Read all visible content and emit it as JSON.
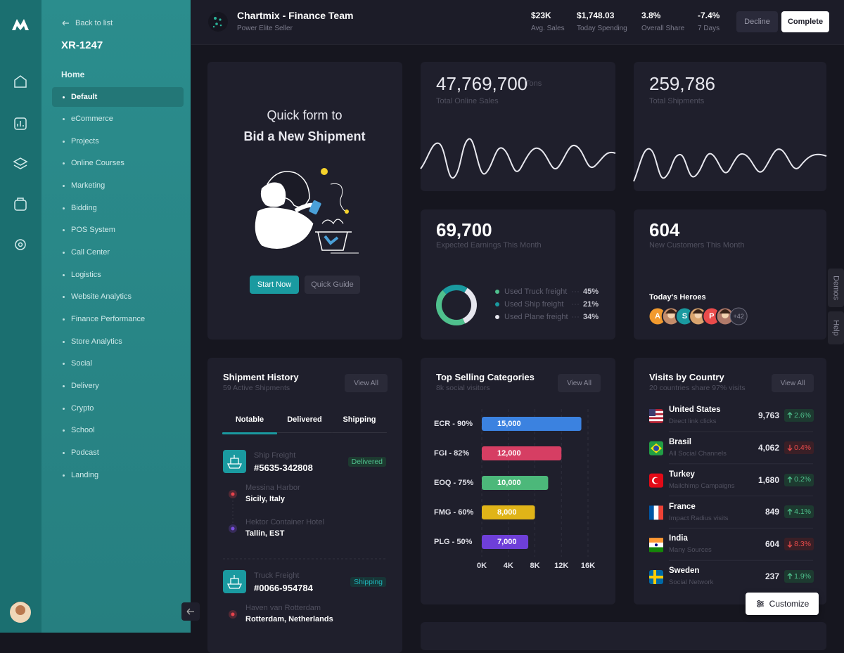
{
  "sidebar": {
    "back": "Back to list",
    "code": "XR-1247",
    "section": "Home",
    "menu": [
      "Default",
      "eCommerce",
      "Projects",
      "Online Courses",
      "Marketing",
      "Bidding",
      "POS System",
      "Call Center",
      "Logistics",
      "Website Analytics",
      "Finance Performance",
      "Store Analytics",
      "Social",
      "Delivery",
      "Crypto",
      "School",
      "Podcast",
      "Landing"
    ],
    "active": 0
  },
  "header": {
    "title": "Chartmix - Finance Team",
    "subtitle": "Power Elite Seller",
    "stats": [
      {
        "value": "$23K",
        "label": "Avg. Sales"
      },
      {
        "value": "$1,748.03",
        "label": "Today Spending"
      },
      {
        "value": "3.8%",
        "label": "Overall Share"
      },
      {
        "value": "-7.4%",
        "label": "7 Days"
      }
    ],
    "decline": "Decline",
    "complete": "Complete"
  },
  "quick_form": {
    "line1": "Quick form to",
    "line2": "Bid a New Shipment",
    "primary": "Start Now",
    "secondary": "Quick Guide"
  },
  "online_sales": {
    "value": "47,769,700",
    "unit": "Tons",
    "label": "Total Online Sales"
  },
  "shipments_total": {
    "value": "259,786",
    "label": "Total Shipments"
  },
  "earnings": {
    "value": "69,700",
    "label": "Expected Earnings This Month"
  },
  "customers": {
    "value": "604",
    "label": "New Customers This Month",
    "heroes_title": "Today's Heroes",
    "heroes": [
      {
        "label": "A",
        "color": "#f29a2e"
      },
      {
        "color": "#c48d6a"
      },
      {
        "label": "S",
        "color": "#1a9aa0"
      },
      {
        "color": "#d9a46e"
      },
      {
        "label": "P",
        "color": "#ea4b4b"
      },
      {
        "color": "#b07a6a"
      }
    ],
    "more": "+42"
  },
  "shipment_history": {
    "title": "Shipment History",
    "subtitle": "59 Active Shipments",
    "action": "View All",
    "tabs": [
      "Notable",
      "Delivered",
      "Shipping"
    ],
    "active_tab": 0,
    "shipments": [
      {
        "type": "Ship Freight",
        "id": "#5635-342808",
        "status": "Delivered",
        "status_color": "#4fc08d",
        "status_bg": "#1d3a30",
        "stops": [
          {
            "place": "Messina Harbor",
            "location": "Sicily, Italy",
            "pin": "#e8434c"
          },
          {
            "place": "Hektor Container Hotel",
            "location": "Tallin, EST",
            "pin": "#7b4fe0"
          }
        ]
      },
      {
        "type": "Truck Freight",
        "id": "#0066-954784",
        "status": "Shipping",
        "status_color": "#1fb5bb",
        "status_bg": "#173537",
        "stops": [
          {
            "place": "Haven van Rotterdam",
            "location": "Rotterdam, Netherlands",
            "pin": "#e8434c"
          }
        ]
      }
    ]
  },
  "top_selling": {
    "action": "View All"
  },
  "visits": {
    "title": "Visits by Country",
    "subtitle": "20 countries share 97% visits",
    "action": "View All",
    "rows": [
      {
        "country": "United States",
        "source": "Direct link clicks",
        "visits": "9,763",
        "change": "2.6%",
        "trend": "up",
        "flag": {
          "style": "us",
          "colors": [
            "#b22234",
            "#ffffff",
            "#3c3b6e"
          ]
        }
      },
      {
        "country": "Brasil",
        "source": "All Social Channels",
        "visits": "4,062",
        "change": "0.4%",
        "trend": "down",
        "flag": {
          "style": "diamond",
          "colors": [
            "#229e45",
            "#f8e509",
            "#2b49a3"
          ]
        }
      },
      {
        "country": "Turkey",
        "source": "Mailchimp Campaigns",
        "visits": "1,680",
        "change": "0.2%",
        "trend": "up",
        "flag": {
          "style": "crescent",
          "colors": [
            "#e30a17",
            "#ffffff"
          ]
        }
      },
      {
        "country": "France",
        "source": "Impact Radius visits",
        "visits": "849",
        "change": "4.1%",
        "trend": "up",
        "flag": {
          "style": "v",
          "colors": [
            "#0055a4",
            "#ffffff",
            "#ef4135"
          ]
        }
      },
      {
        "country": "India",
        "source": "Many Sources",
        "visits": "604",
        "change": "8.3%",
        "trend": "down",
        "flag": {
          "style": "h",
          "colors": [
            "#ff9933",
            "#ffffff",
            "#138808"
          ]
        }
      },
      {
        "country": "Sweden",
        "source": "Social Network",
        "visits": "237",
        "change": "1.9%",
        "trend": "up",
        "flag": {
          "style": "cross",
          "colors": [
            "#006aa7",
            "#fecc00"
          ]
        }
      }
    ]
  },
  "chart_data": [
    {
      "type": "donut",
      "categories": [
        "Used Truck freight",
        "Used Ship freight",
        "Used Plane freight"
      ],
      "values": [
        45,
        21,
        34
      ],
      "value_labels": [
        "45%",
        "21%",
        "34%"
      ],
      "colors": [
        "#4fc08d",
        "#1a9aa0",
        "#e6e6ee"
      ]
    },
    {
      "type": "bar",
      "orientation": "horizontal",
      "title": "Top Selling Categories",
      "subtitle": "8k social visitors",
      "categories": [
        "ECR - 90%",
        "FGI - 82%",
        "EOQ - 75%",
        "FMG - 60%",
        "PLG - 50%"
      ],
      "values": [
        15000,
        12000,
        10000,
        8000,
        7000
      ],
      "value_labels": [
        "15,000",
        "12,000",
        "10,000",
        "8,000",
        "7,000"
      ],
      "colors": [
        "#3b82e0",
        "#d63e63",
        "#4cb87a",
        "#e0b418",
        "#6e3fd8"
      ],
      "xlim": [
        0,
        16000
      ],
      "xticks": [
        {
          "value": 0,
          "label": "0K"
        },
        {
          "value": 4000,
          "label": "4K"
        },
        {
          "value": 8000,
          "label": "8K"
        },
        {
          "value": 12000,
          "label": "12K"
        },
        {
          "value": 16000,
          "label": "16K"
        }
      ],
      "grid": true
    }
  ],
  "side_tabs": [
    "Demos",
    "Help"
  ],
  "customize": "Customize"
}
